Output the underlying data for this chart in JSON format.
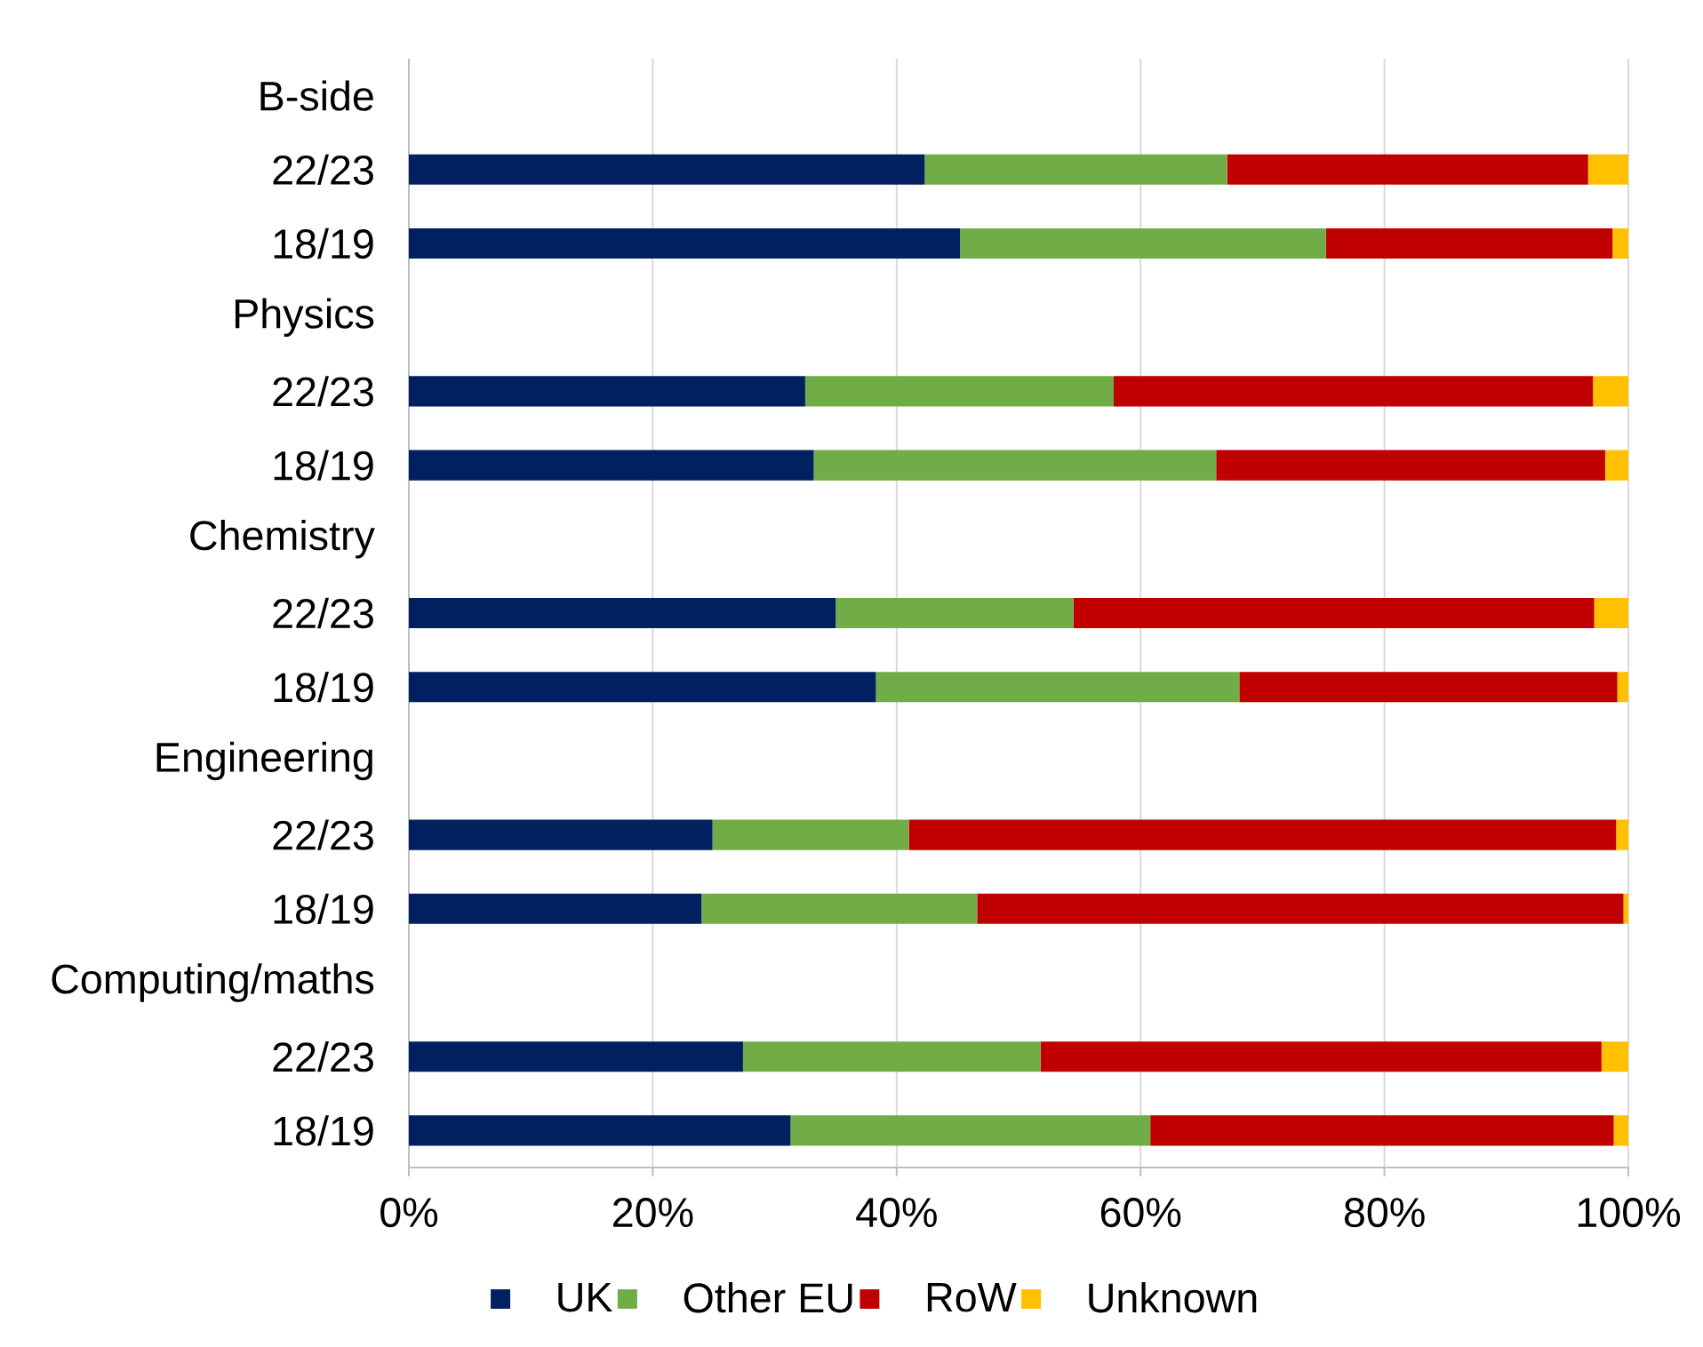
{
  "chart_data": {
    "type": "bar",
    "orientation": "horizontal",
    "stacked": true,
    "categories": [
      "B-side",
      "22/23",
      "18/19",
      "Physics",
      "22/23",
      "18/19",
      "Chemistry",
      "22/23",
      "18/19",
      "Engineering",
      "22/23",
      "18/19",
      "Computing/maths",
      "22/23",
      "18/19"
    ],
    "series": [
      {
        "name": "UK",
        "color": "#002060",
        "values": [
          null,
          42.3,
          45.2,
          null,
          32.5,
          33.2,
          null,
          35.0,
          38.3,
          null,
          24.9,
          24.0,
          null,
          27.4,
          31.3
        ]
      },
      {
        "name": "Other EU",
        "color": "#70AD47",
        "values": [
          null,
          24.8,
          30.0,
          null,
          25.3,
          33.0,
          null,
          19.5,
          29.8,
          null,
          16.1,
          22.6,
          null,
          24.4,
          29.5
        ]
      },
      {
        "name": "RoW",
        "color": "#C00000",
        "values": [
          null,
          29.6,
          23.5,
          null,
          39.3,
          31.9,
          null,
          42.7,
          31.0,
          null,
          58.0,
          53.0,
          null,
          46.0,
          38.0
        ]
      },
      {
        "name": "Unknown",
        "color": "#FFC000",
        "values": [
          null,
          3.3,
          1.3,
          null,
          2.9,
          1.9,
          null,
          2.8,
          0.9,
          null,
          1.0,
          0.4,
          null,
          2.2,
          1.2
        ]
      }
    ],
    "xlim": [
      0,
      100
    ],
    "xticks": [
      {
        "value": 0,
        "label": "0%"
      },
      {
        "value": 20,
        "label": "20%"
      },
      {
        "value": 40,
        "label": "40%"
      },
      {
        "value": 60,
        "label": "60%"
      },
      {
        "value": 80,
        "label": "80%"
      },
      {
        "value": 100,
        "label": "100%"
      }
    ],
    "grid": "x",
    "legend": "bottom"
  }
}
